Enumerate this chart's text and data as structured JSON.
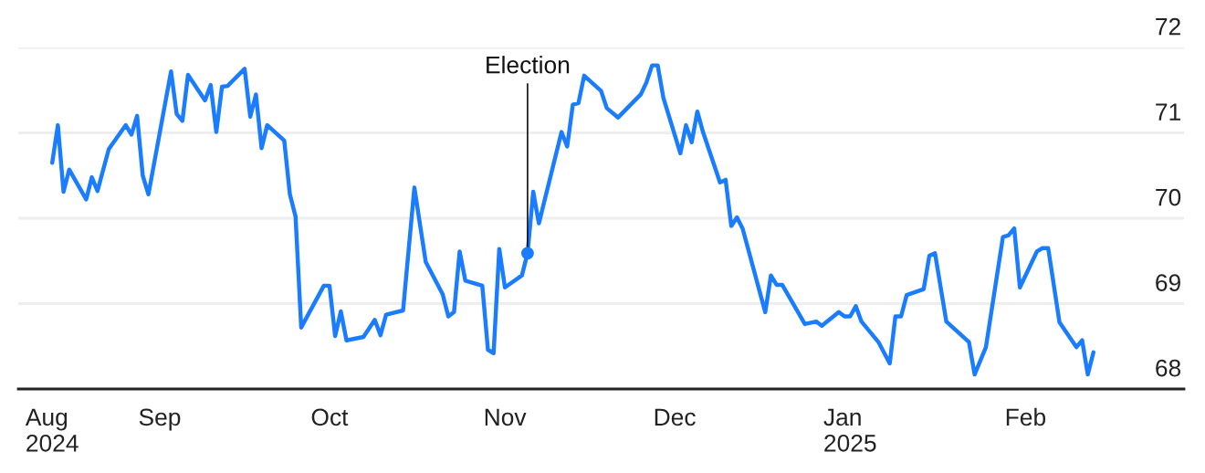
{
  "chart_data": {
    "type": "line",
    "x": [
      "2024-08-13",
      "2024-08-14",
      "2024-08-15",
      "2024-08-16",
      "2024-08-19",
      "2024-08-20",
      "2024-08-21",
      "2024-08-23",
      "2024-08-26",
      "2024-08-27",
      "2024-08-28",
      "2024-08-29",
      "2024-08-30",
      "2024-09-03",
      "2024-09-04",
      "2024-09-05",
      "2024-09-06",
      "2024-09-09",
      "2024-09-10",
      "2024-09-11",
      "2024-09-12",
      "2024-09-13",
      "2024-09-16",
      "2024-09-17",
      "2024-09-18",
      "2024-09-19",
      "2024-09-20",
      "2024-09-23",
      "2024-09-24",
      "2024-09-25",
      "2024-09-26",
      "2024-09-30",
      "2024-10-01",
      "2024-10-02",
      "2024-10-03",
      "2024-10-04",
      "2024-10-07",
      "2024-10-09",
      "2024-10-10",
      "2024-10-11",
      "2024-10-14",
      "2024-10-16",
      "2024-10-18",
      "2024-10-21",
      "2024-10-22",
      "2024-10-23",
      "2024-10-24",
      "2024-10-25",
      "2024-10-28",
      "2024-10-29",
      "2024-10-30",
      "2024-10-31",
      "2024-11-01",
      "2024-11-04",
      "2024-11-05",
      "2024-11-06",
      "2024-11-07",
      "2024-11-11",
      "2024-11-12",
      "2024-11-13",
      "2024-11-14",
      "2024-11-15",
      "2024-11-18",
      "2024-11-19",
      "2024-11-21",
      "2024-11-25",
      "2024-11-26",
      "2024-11-27",
      "2024-11-28",
      "2024-11-29",
      "2024-12-02",
      "2024-12-03",
      "2024-12-04",
      "2024-12-05",
      "2024-12-06",
      "2024-12-09",
      "2024-12-10",
      "2024-12-11",
      "2024-12-12",
      "2024-12-13",
      "2024-12-17",
      "2024-12-18",
      "2024-12-19",
      "2024-12-20",
      "2024-12-24",
      "2024-12-26",
      "2024-12-27",
      "2024-12-30",
      "2024-12-31",
      "2025-01-01",
      "2025-01-02",
      "2025-01-03",
      "2025-01-06",
      "2025-01-08",
      "2025-01-09",
      "2025-01-10",
      "2025-01-11",
      "2025-01-14",
      "2025-01-15",
      "2025-01-16",
      "2025-01-18",
      "2025-01-22",
      "2025-01-23",
      "2025-01-25",
      "2025-01-28",
      "2025-01-29",
      "2025-01-30",
      "2025-01-31",
      "2025-02-03",
      "2025-02-04",
      "2025-02-05",
      "2025-02-07",
      "2025-02-10",
      "2025-02-11",
      "2025-02-12",
      "2025-02-13"
    ],
    "series": [
      {
        "color": "#1a7cff",
        "values": [
          70.65,
          71.09,
          70.31,
          70.57,
          70.22,
          70.48,
          70.32,
          70.81,
          71.09,
          70.98,
          71.2,
          70.5,
          70.28,
          71.72,
          71.22,
          71.14,
          71.68,
          71.38,
          71.56,
          71.01,
          71.54,
          71.55,
          71.75,
          71.19,
          71.45,
          70.82,
          71.09,
          70.91,
          70.28,
          70.02,
          68.72,
          69.21,
          69.21,
          68.62,
          68.91,
          68.57,
          68.61,
          68.81,
          68.63,
          68.87,
          68.92,
          70.36,
          69.49,
          69.11,
          68.85,
          68.9,
          69.61,
          69.27,
          69.21,
          68.46,
          68.42,
          69.64,
          69.19,
          69.33,
          69.59,
          70.31,
          69.94,
          71.01,
          70.84,
          71.33,
          71.35,
          71.67,
          71.49,
          71.29,
          71.18,
          71.45,
          71.59,
          71.79,
          71.79,
          71.41,
          70.76,
          71.09,
          70.89,
          71.25,
          71.01,
          70.42,
          70.45,
          69.91,
          70.01,
          69.88,
          68.9,
          69.33,
          69.22,
          69.22,
          68.76,
          68.79,
          68.74,
          68.9,
          68.85,
          68.85,
          68.97,
          68.79,
          68.55,
          68.3,
          68.85,
          68.85,
          69.1,
          69.17,
          69.56,
          69.59,
          68.79,
          68.55,
          68.17,
          68.49,
          69.78,
          69.8,
          69.88,
          69.19,
          69.61,
          69.65,
          69.65,
          68.78,
          68.49,
          68.57,
          68.17,
          68.43
        ]
      }
    ],
    "annotations": [
      {
        "text": "Election",
        "x": "2024-11-05",
        "y": 69.59
      }
    ],
    "xlim": [
      "2024-08-07",
      "2025-03-01"
    ],
    "xticks": [
      {
        "value": "2024-08-13",
        "label": "Aug\n2024"
      },
      {
        "value": "2024-09-01",
        "label": "Sep"
      },
      {
        "value": "2024-10-01",
        "label": "Oct"
      },
      {
        "value": "2024-11-01",
        "label": "Nov"
      },
      {
        "value": "2024-12-01",
        "label": "Dec"
      },
      {
        "value": "2025-01-01",
        "label": "Jan\n2025"
      },
      {
        "value": "2025-02-01",
        "label": "Feb"
      }
    ],
    "ylim": [
      68,
      72
    ],
    "yticks": [
      68,
      69,
      70,
      71,
      72
    ],
    "grid": "y",
    "legend": false,
    "marker": "none",
    "line_style": "solid"
  }
}
